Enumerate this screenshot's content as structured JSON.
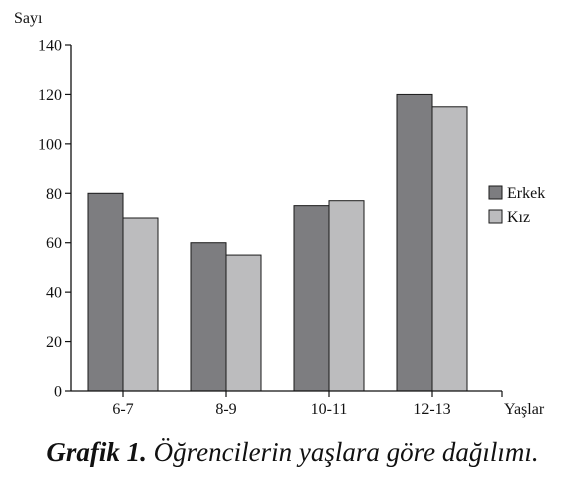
{
  "chart_data": {
    "type": "bar",
    "title": "",
    "ylabel": "Sayı",
    "xlabel": "Yaşlar",
    "categories": [
      "6-7",
      "8-9",
      "10-11",
      "12-13"
    ],
    "series": [
      {
        "name": "Erkek",
        "values": [
          80,
          60,
          75,
          120
        ],
        "color": "#7d7d80"
      },
      {
        "name": "Kız",
        "values": [
          70,
          55,
          77,
          115
        ],
        "color": "#bcbcbe"
      }
    ],
    "ylim": [
      0,
      140
    ],
    "yticks": [
      0,
      20,
      40,
      60,
      80,
      100,
      120,
      140
    ],
    "grid": false,
    "legend": "right"
  },
  "caption": {
    "lead": "Grafik 1.",
    "rest": " Öğrencilerin yaşlara göre dağılımı."
  }
}
